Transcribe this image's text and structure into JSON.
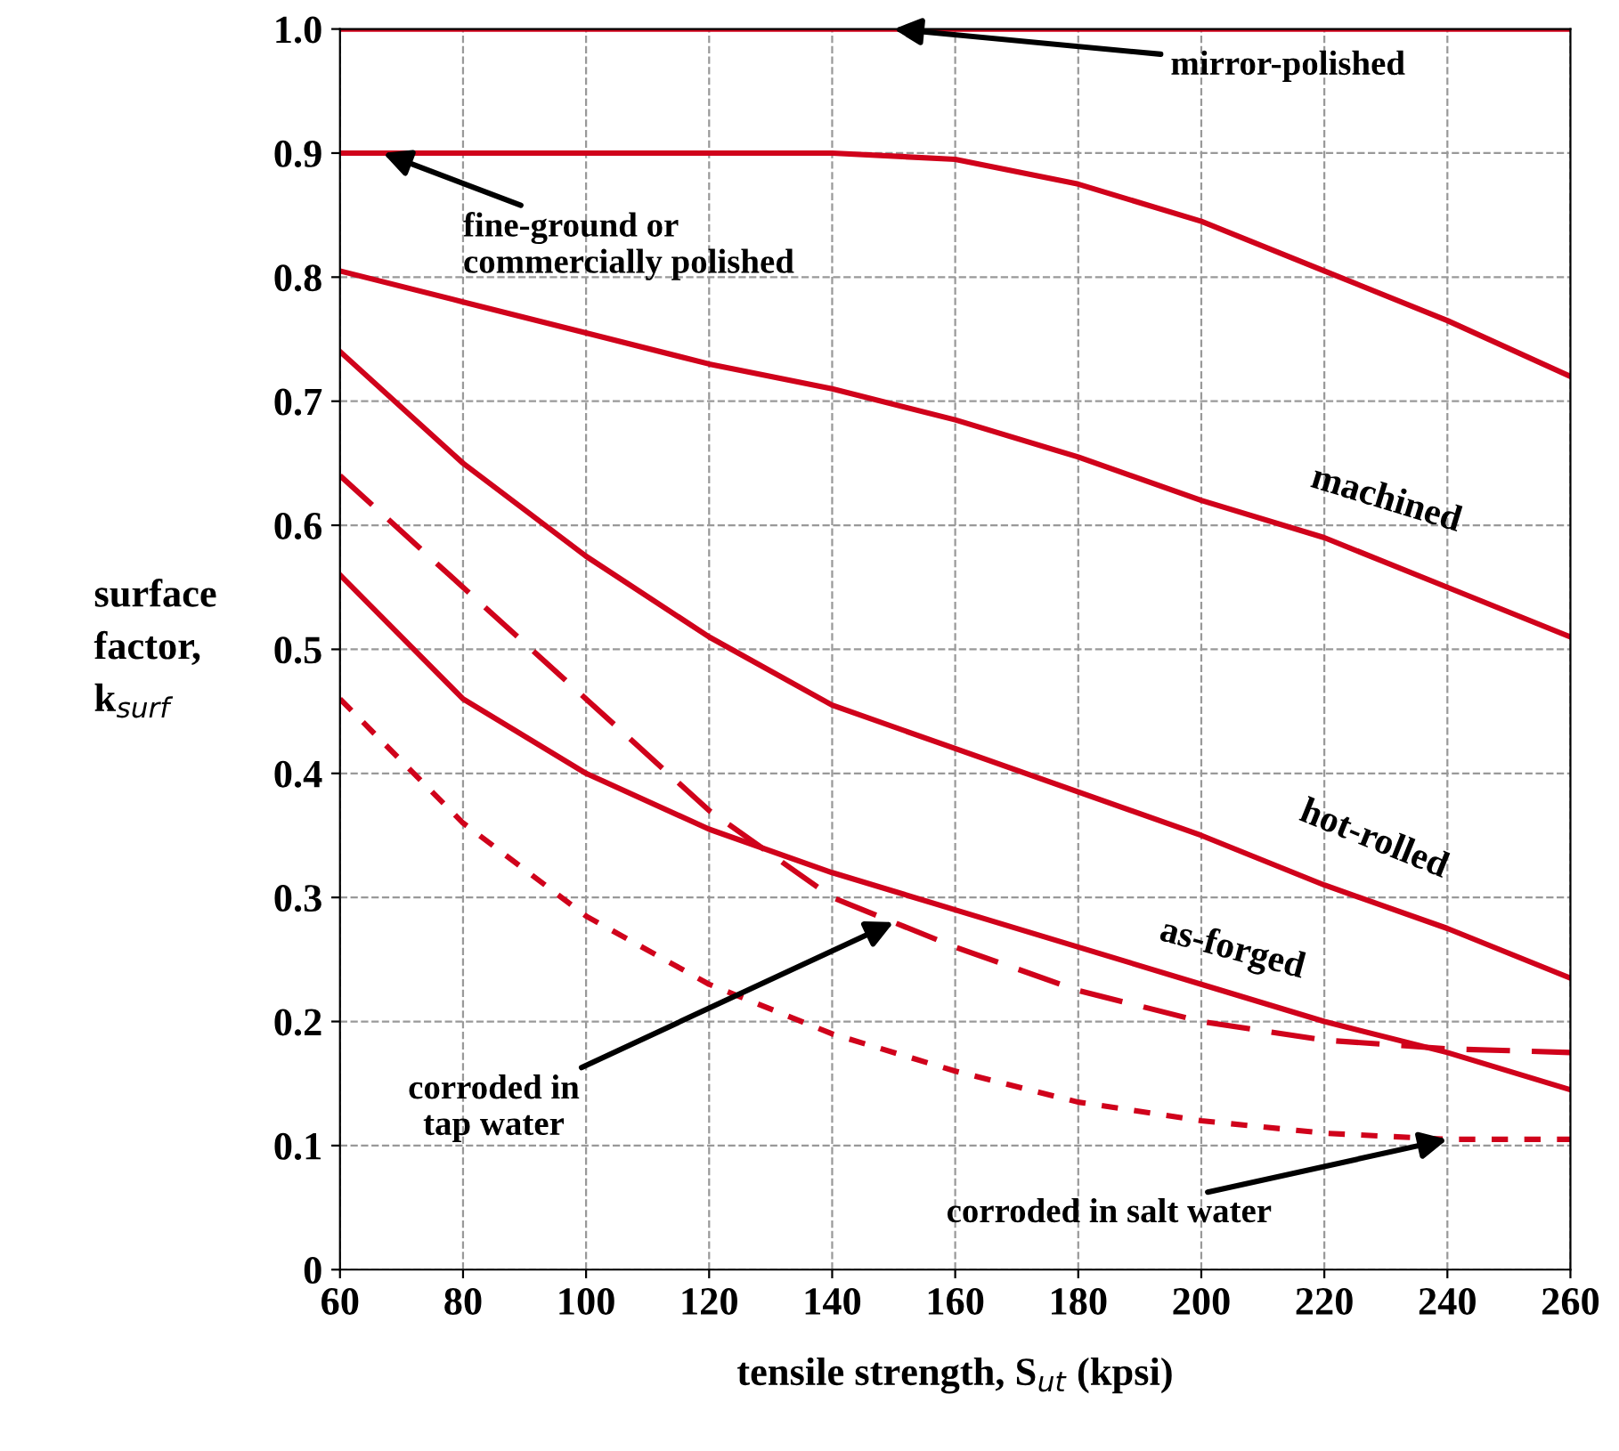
{
  "chart_data": {
    "type": "line",
    "xlabel": "tensile strength, S$_{ut}$ (kpsi)",
    "ylabel": "surface\nfactor,\nk$_{surf}$",
    "xlim": [
      60,
      260
    ],
    "ylim": [
      0,
      1.0
    ],
    "xticks": [
      60,
      80,
      100,
      120,
      140,
      160,
      180,
      200,
      220,
      240,
      260
    ],
    "yticks": [
      0,
      0.1,
      0.2,
      0.3,
      0.4,
      0.5,
      0.6,
      0.7,
      0.8,
      0.9,
      {
        "value": 1,
        "label": "1.0"
      }
    ],
    "grid": true,
    "marker": "none",
    "x": [
      60,
      80,
      100,
      120,
      140,
      160,
      180,
      200,
      220,
      240,
      260
    ],
    "series": [
      {
        "color": "#d0021b",
        "line_style": "solid",
        "values": [
          1.0,
          1.0,
          1.0,
          1.0,
          1.0,
          1.0,
          1.0,
          1.0,
          1.0,
          1.0,
          1.0
        ]
      },
      {
        "color": "#d0021b",
        "line_style": "solid",
        "values": [
          0.9,
          0.9,
          0.9,
          0.9,
          0.9,
          0.895,
          0.875,
          0.845,
          0.805,
          0.765,
          0.72
        ]
      },
      {
        "name": "machined",
        "color": "#d0021b",
        "line_style": "solid",
        "values": [
          0.805,
          0.78,
          0.755,
          0.73,
          0.71,
          0.685,
          0.655,
          0.62,
          0.59,
          0.55,
          0.51
        ]
      },
      {
        "name": "hot-rolled",
        "color": "#d0021b",
        "line_style": "solid",
        "values": [
          0.74,
          0.65,
          0.575,
          0.51,
          0.455,
          0.42,
          0.385,
          0.35,
          0.31,
          0.275,
          0.235
        ]
      },
      {
        "name": "as-forged",
        "color": "#d0021b",
        "line_style": "solid",
        "values": [
          0.56,
          0.46,
          0.4,
          0.355,
          0.32,
          0.29,
          0.26,
          0.23,
          0.2,
          0.175,
          0.145
        ]
      },
      {
        "color": "#d0021b",
        "line_style": "dashed",
        "values": [
          0.64,
          0.55,
          0.46,
          0.37,
          0.3,
          0.26,
          0.225,
          0.2,
          0.185,
          0.178,
          0.175
        ]
      },
      {
        "color": "#d0021b",
        "line_style": "dotted",
        "values": [
          0.46,
          0.36,
          0.285,
          0.23,
          0.19,
          0.16,
          0.135,
          0.12,
          0.11,
          0.105,
          0.105
        ]
      }
    ],
    "annotations": [
      {
        "text": "mirror-polished",
        "x": 150,
        "y": 1.0
      },
      {
        "text": "fine-ground or\ncommercially polished",
        "x": 67,
        "y": 0.9
      },
      {
        "text": "corroded in\ntap water",
        "x": 150,
        "y": 0.28
      },
      {
        "text": "corroded in salt water",
        "x": 240,
        "y": 0.105
      }
    ]
  }
}
